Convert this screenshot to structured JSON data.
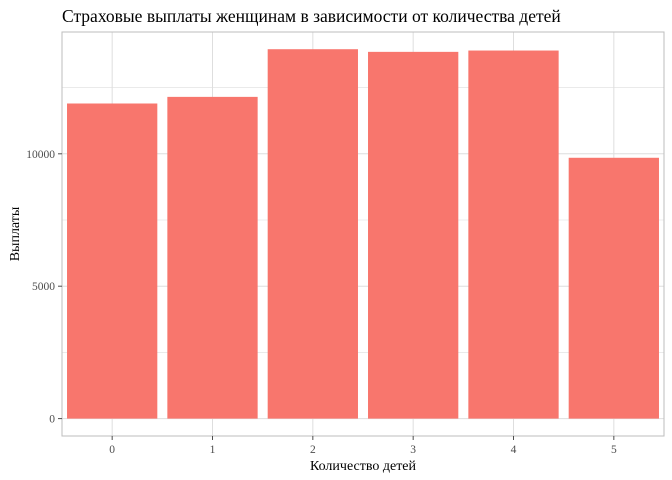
{
  "chart_data": {
    "type": "bar",
    "title": "Страховые выплаты женщинам в зависимости от количества детей",
    "xlabel": "Количество детей",
    "ylabel": "Выплаты",
    "categories": [
      "0",
      "1",
      "2",
      "3",
      "4",
      "5"
    ],
    "values": [
      11900,
      12150,
      13950,
      13850,
      13900,
      9850
    ],
    "ylim": [
      0,
      14600
    ],
    "yticks": [
      0,
      5000,
      10000
    ],
    "ytick_labels": [
      "0",
      "5000",
      "10000"
    ],
    "grid": true,
    "legend": "none",
    "colors": {
      "bar": "#F8766D",
      "grid": "#dedede",
      "panel_border": "#bdbdbd",
      "tick": "#4d4d4d"
    }
  }
}
